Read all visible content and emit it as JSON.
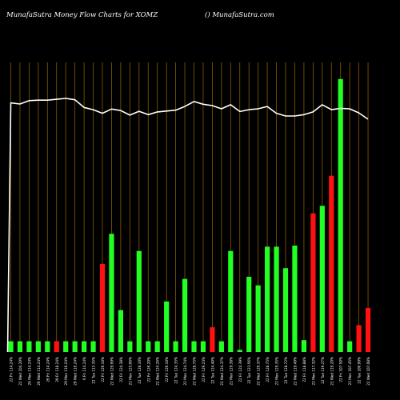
{
  "header": {
    "title": "MunafaSutra  Money Flow  Charts for XOMZ",
    "site": "() MunafaSutra.com"
  },
  "colors": {
    "background": "#000000",
    "grid": "#8B5A00",
    "up": "#22FF22",
    "down": "#FF1111",
    "line": "#FFFFFF"
  },
  "chart_data": {
    "type": "bar",
    "categories": [
      "22 Fri 114.24%",
      "22 Wed 104.20%",
      "26 Mon 114.24%",
      "26 Wed 114.24%",
      "26 Fri 114.24%",
      "29 Fri 118.24%",
      "29 Mon 119.24%",
      "29 Wed 116.24%",
      "6 Fri 114.24%",
      "22 Tue 115.35%",
      "22 Fri 129.10%",
      "22 Wed 129.99%",
      "22 Fri 124.38%",
      "22 Mon 125.06%",
      "22 Tue 128.10%",
      "22 Fri 126.20%",
      "22 Wed 124.26%",
      "22 Fri 129.10%",
      "22 Tue 124.35%",
      "22 Mon 124.74%",
      "22 Wed 128.75%",
      "22 Fri 129.23%",
      "22 Tue 124.40%",
      "22 Wed 124.37%",
      "22 Mon 129.38%",
      "22 Fri 124.39%",
      "22 Tue 123.56%",
      "22 Wed 129.37%",
      "22 Fri 128.75%",
      "22 Mon 129.35%",
      "22 Tue 128.72%",
      "22 Wed 119.49%",
      "22 Fri 118.88%",
      "22 Mon 117.32%",
      "22 Tue 119.27%",
      "22 Wed 119.20%",
      "22 Fri 107.50%",
      "22 Mon 107.45%",
      "22 Tue 106.99%",
      "22 Wed 107.08%"
    ],
    "series": [
      {
        "role": "volume",
        "values": [
          1,
          1,
          1,
          1,
          1,
          1,
          1,
          1,
          1,
          1,
          8.2,
          11,
          3.9,
          1,
          9.4,
          1,
          1,
          4.7,
          1,
          6.8,
          1,
          1,
          2.3,
          1,
          9.4,
          0.2,
          7,
          6.2,
          9.8,
          9.8,
          7.8,
          9.9,
          1.1,
          12.9,
          13.6,
          16.4,
          25.4,
          1,
          2.5,
          4.1
        ],
        "colors": [
          "up",
          "up",
          "up",
          "up",
          "up",
          "down",
          "up",
          "up",
          "up",
          "up",
          "down",
          "up",
          "up",
          "up",
          "up",
          "up",
          "up",
          "up",
          "up",
          "up",
          "up",
          "up",
          "down",
          "up",
          "up",
          "up",
          "up",
          "up",
          "up",
          "up",
          "up",
          "up",
          "up",
          "down",
          "up",
          "down",
          "up",
          "up",
          "down",
          "down"
        ]
      },
      {
        "role": "money-flow-line",
        "values": [
          110,
          109.5,
          111,
          111.2,
          111.2,
          111.6,
          112,
          111.4,
          108,
          107,
          105.4,
          107.3,
          106.6,
          104.6,
          106.3,
          104.8,
          106,
          106.4,
          106.8,
          108.4,
          110.6,
          109.4,
          108.8,
          107.4,
          109.2,
          106.2,
          107,
          107.4,
          108.4,
          105.4,
          104.2,
          104.2,
          104.8,
          106,
          109.2,
          107,
          107.6,
          107.4,
          105.6,
          102.8
        ]
      }
    ],
    "line_start": {
      "from": 0,
      "to": 110
    },
    "volume_range": [
      0,
      26.5
    ],
    "line_range": [
      0,
      130
    ],
    "grid": "vertical"
  }
}
